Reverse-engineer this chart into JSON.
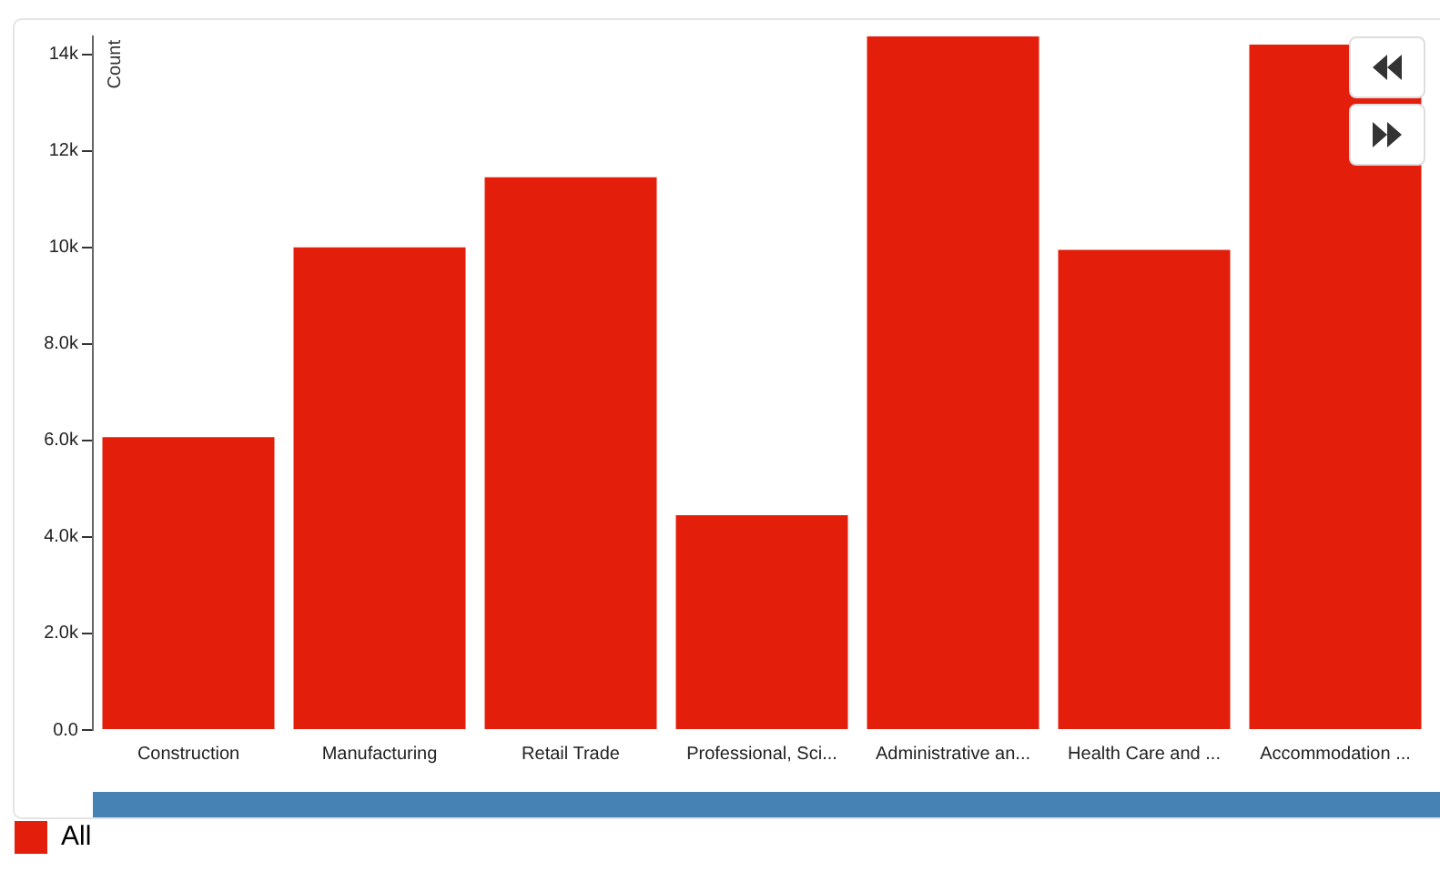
{
  "chart_data": {
    "type": "bar",
    "ylabel": "Count",
    "categories": [
      "Construction",
      "Manufacturing",
      "Retail Trade",
      "Professional, Sci...",
      "Administrative an...",
      "Health Care and ...",
      "Accommodation ..."
    ],
    "series": [
      {
        "name": "All",
        "color": "#e31e0b",
        "values": [
          6070,
          10000,
          11450,
          4450,
          14370,
          9950,
          14200
        ]
      }
    ],
    "ylim": [
      0,
      14370
    ],
    "yticks": [
      {
        "value": 0,
        "label": "0.0"
      },
      {
        "value": 2000,
        "label": "2.0k"
      },
      {
        "value": 4000,
        "label": "4.0k"
      },
      {
        "value": 6000,
        "label": "6.0k"
      },
      {
        "value": 8000,
        "label": "8.0k"
      },
      {
        "value": 10000,
        "label": "10k"
      },
      {
        "value": 12000,
        "label": "12k"
      },
      {
        "value": 14000,
        "label": "14k"
      }
    ],
    "legend": "bottom left"
  }
}
